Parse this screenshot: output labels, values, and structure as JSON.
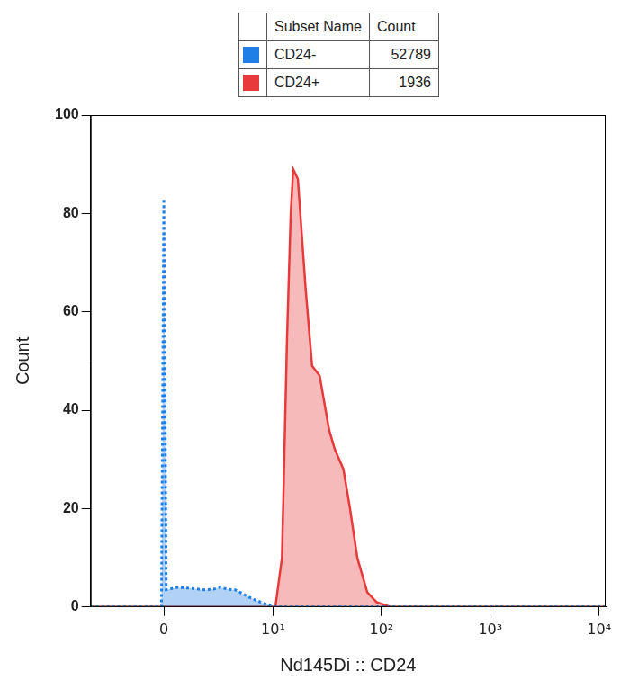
{
  "chart_data": {
    "type": "area",
    "x_label": "Nd145Di :: CD24",
    "y_label": "Count",
    "xlim": [
      -4.5,
      11500
    ],
    "xticks": [
      0,
      {
        "value": 10,
        "label": "10¹"
      },
      {
        "value": 100,
        "label": "10²"
      },
      {
        "value": 1000,
        "label": "10³"
      },
      {
        "value": 10000,
        "label": "10⁴"
      }
    ],
    "ylim": [
      0,
      100
    ],
    "yticks": [
      0,
      20,
      40,
      60,
      80,
      100
    ],
    "grid": false,
    "legend_table": {
      "columns": [
        "Subset Name",
        "Count"
      ]
    },
    "series": [
      {
        "name": "CD24-",
        "count": 52789,
        "color": "#1f7fe6",
        "line_style": "dotted",
        "x": [
          -4.5,
          -0.1,
          0,
          0.1,
          0.6,
          1.2,
          1.9,
          2.5,
          3.0,
          3.6,
          4.3,
          5.0,
          5.9,
          7.0,
          8.0,
          9.3,
          10.5,
          11500
        ],
        "values": [
          0,
          0,
          83,
          3.5,
          4,
          3.8,
          3.5,
          3.6,
          4,
          3.6,
          3.5,
          2.8,
          2,
          1.3,
          0.8,
          0.3,
          0,
          0
        ]
      },
      {
        "name": "CD24+",
        "count": 1936,
        "color": "#e83a3a",
        "line_style": "solid",
        "x": [
          -4.5,
          10.5,
          12.1,
          13.5,
          14.6,
          15.4,
          17,
          20,
          23,
          27,
          33,
          37.3,
          44.7,
          51.4,
          60,
          74,
          90,
          121,
          11500
        ],
        "values": [
          0,
          0,
          10,
          55,
          80,
          89,
          87,
          65,
          49,
          47,
          36,
          32,
          28,
          20,
          10,
          3,
          1,
          0,
          0
        ]
      }
    ]
  }
}
